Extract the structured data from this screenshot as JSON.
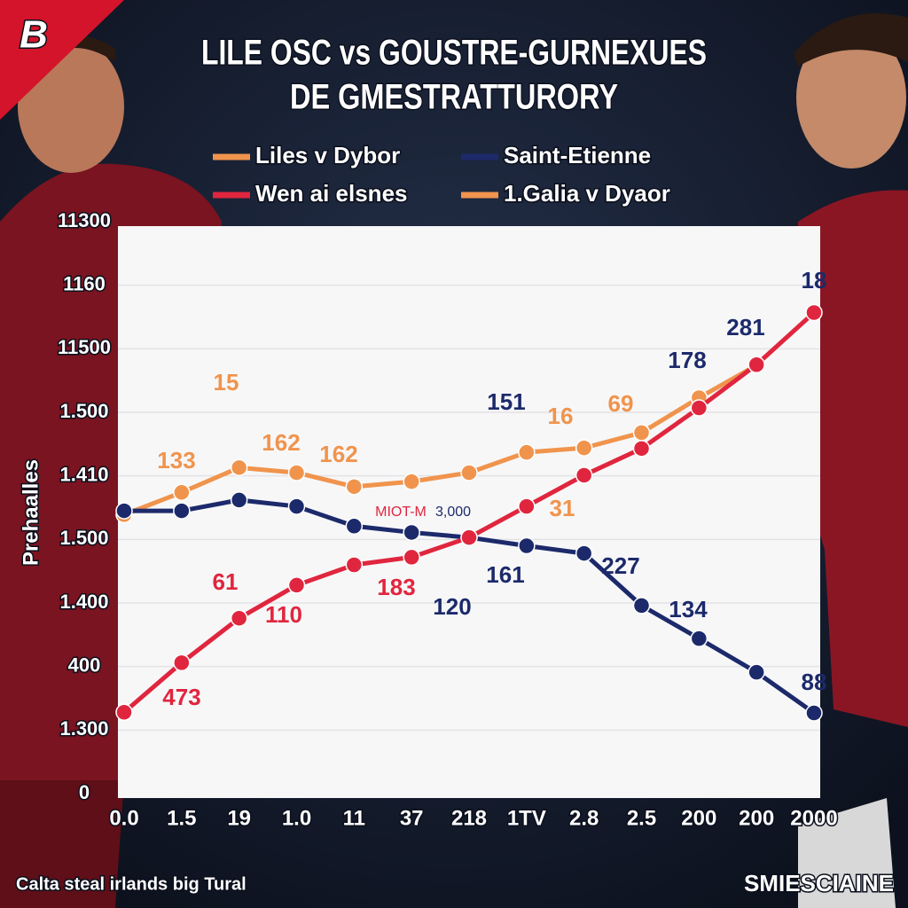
{
  "chart_data": {
    "type": "line",
    "title": "LILE OSC vs GOUSTRE-GURNEXUES",
    "subtitle": "DE GMESTRATTURORY",
    "y_label": "Prehaalles",
    "footer": "Calta steal irlands big Tural",
    "brand": "SMIESCIAINE",
    "logo": "B",
    "categories": [
      "0.0",
      "1.5",
      "19",
      "1.0",
      "11",
      "37",
      "218",
      "1TV",
      "2.8",
      "2.5",
      "200",
      "200",
      "2000"
    ],
    "ylim": [
      0,
      9
    ],
    "yticks": [
      {
        "value": 0,
        "label": "0"
      },
      {
        "value": 1,
        "label": "1.300"
      },
      {
        "value": 2,
        "label": "400"
      },
      {
        "value": 3,
        "label": "1.400"
      },
      {
        "value": 4,
        "label": "1.500"
      },
      {
        "value": 5,
        "label": "1.410"
      },
      {
        "value": 6,
        "label": "1.500"
      },
      {
        "value": 7,
        "label": "11500"
      },
      {
        "value": 8,
        "label": "1160"
      },
      {
        "value": 9,
        "label": "11300"
      }
    ],
    "grid": true,
    "series": [
      {
        "name": "Liles v Dybor",
        "color": "#f0944d",
        "values": [
          4.39,
          4.74,
          5.13,
          5.05,
          4.83,
          4.91,
          5.05,
          5.37,
          5.44,
          5.68,
          6.23,
          6.74,
          null
        ]
      },
      {
        "name": "Saint-Etienne",
        "color": "#1c2a6b",
        "values": [
          4.45,
          4.45,
          4.62,
          4.52,
          4.21,
          4.11,
          4.03,
          3.9,
          3.78,
          2.96,
          2.44,
          1.91,
          1.27
        ]
      },
      {
        "name": "Wen ai elsnes",
        "color": "#e0263e",
        "values": [
          1.28,
          2.06,
          2.76,
          3.28,
          3.6,
          3.72,
          4.03,
          4.52,
          5.01,
          5.43,
          6.07,
          6.75,
          7.57
        ]
      },
      {
        "name": "1.Galia v Dyaor",
        "color": "#f0944d",
        "values": [
          null,
          null,
          null,
          null,
          null,
          null,
          null,
          null,
          null,
          null,
          null,
          null,
          null
        ]
      }
    ],
    "annotations": [
      {
        "text": "15",
        "color": "#f0944d"
      },
      {
        "text": "133",
        "color": "#f0944d"
      },
      {
        "text": "162",
        "color": "#f0944d"
      },
      {
        "text": "162",
        "color": "#f0944d"
      },
      {
        "text": "151",
        "color": "#1c2a6b"
      },
      {
        "text": "16",
        "color": "#f0944d"
      },
      {
        "text": "69",
        "color": "#f0944d"
      },
      {
        "text": "178",
        "color": "#1c2a6b"
      },
      {
        "text": "281",
        "color": "#1c2a6b"
      },
      {
        "text": "18",
        "color": "#1c2a6b"
      },
      {
        "text": "MIOT-M",
        "color": "#e0263e"
      },
      {
        "text": "3,000",
        "color": "#1c2a6b"
      },
      {
        "text": "31",
        "color": "#f0944d"
      },
      {
        "text": "61",
        "color": "#e0263e"
      },
      {
        "text": "110",
        "color": "#e0263e"
      },
      {
        "text": "183",
        "color": "#e0263e"
      },
      {
        "text": "120",
        "color": "#1c2a6b"
      },
      {
        "text": "161",
        "color": "#1c2a6b"
      },
      {
        "text": "227",
        "color": "#1c2a6b"
      },
      {
        "text": "134",
        "color": "#1c2a6b"
      },
      {
        "text": "88",
        "color": "#1c2a6b"
      },
      {
        "text": "473",
        "color": "#e0263e"
      }
    ]
  }
}
